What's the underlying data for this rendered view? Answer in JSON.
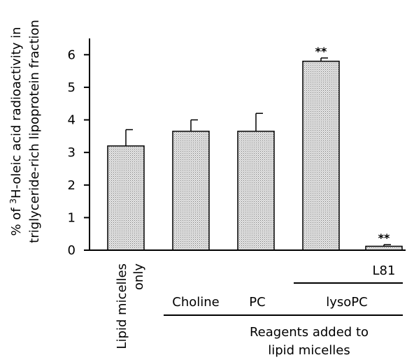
{
  "chart_data": {
    "type": "bar",
    "categories": [
      "Lipid micelles only",
      "Choline",
      "PC",
      "lysoPC",
      "lysoPC + L81"
    ],
    "values": [
      3.2,
      3.65,
      3.65,
      5.8,
      0.12
    ],
    "errors": [
      0.5,
      0.35,
      0.55,
      0.1,
      0.05
    ],
    "significance": [
      "",
      "",
      "",
      "**",
      "**"
    ],
    "ylim": [
      0,
      6.5
    ],
    "yticks": [
      0,
      1,
      2,
      3,
      4,
      5,
      6
    ],
    "ylabel": {
      "prefix": "% of ",
      "superscript": "3",
      "line1_rest": "H-oleic acid radioactivity in",
      "line2": "triglyceride-rich lipoprotein fraction"
    },
    "xlabels": {
      "lipid_line1": "Lipid micelles",
      "lipid_line2": "only",
      "choline": "Choline",
      "pc": "PC",
      "lysopc": "lysoPC",
      "l81": "L81",
      "reagents_line1": "Reagents added to",
      "reagents_line2": "lipid micelles"
    },
    "bar_fill": "#d9d9d9",
    "grid": false,
    "legend": "none"
  }
}
